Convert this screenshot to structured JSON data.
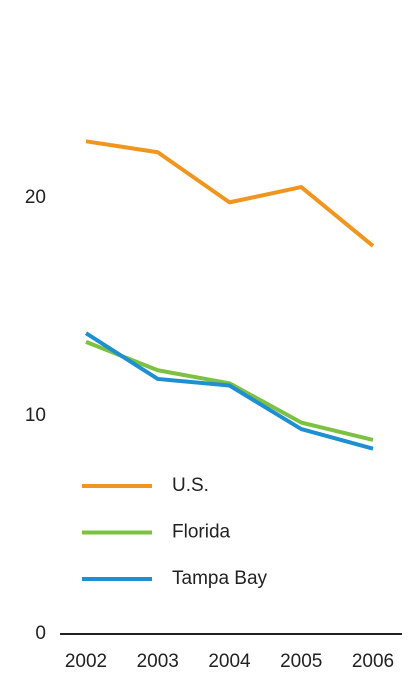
{
  "chart_data": {
    "type": "line",
    "categories": [
      "2002",
      "2003",
      "2004",
      "2005",
      "2006"
    ],
    "series": [
      {
        "name": "U.S.",
        "color": "#f0961e",
        "values": [
          22.6,
          22.1,
          19.8,
          20.5,
          17.8
        ]
      },
      {
        "name": "Florida",
        "color": "#7dc142",
        "values": [
          13.4,
          12.1,
          11.5,
          9.7,
          8.9
        ]
      },
      {
        "name": "Tampa Bay",
        "color": "#1e8fd0",
        "values": [
          13.8,
          11.7,
          11.4,
          9.4,
          8.5
        ]
      }
    ],
    "ylim": [
      0,
      25
    ],
    "yticks": [
      0,
      10,
      20
    ],
    "grid": false,
    "legend": "bottom-left"
  }
}
